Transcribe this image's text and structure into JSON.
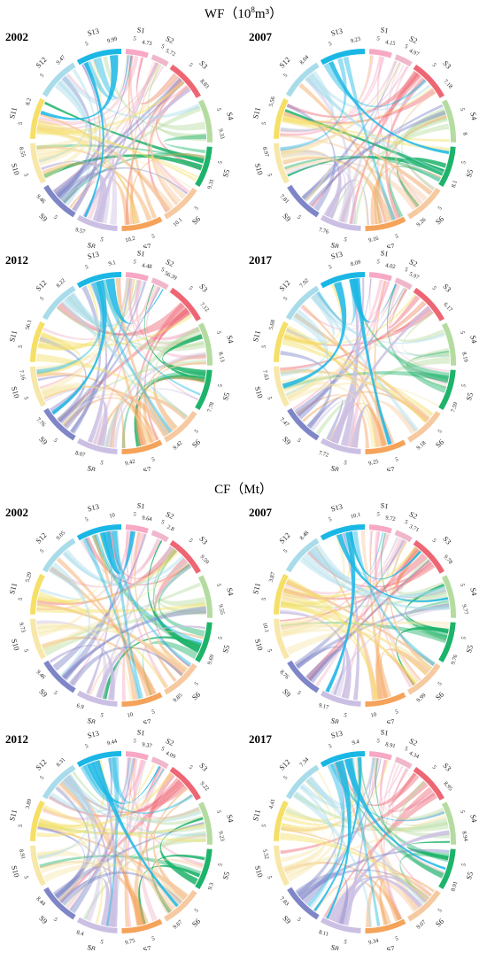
{
  "sections": [
    {
      "title": "WF（",
      "title_sup_base": "10",
      "title_sup": "8",
      "title_unit_tail": "m³）",
      "panels": [
        {
          "year": "2002"
        },
        {
          "year": "2007"
        },
        {
          "year": "2012"
        },
        {
          "year": "2017"
        }
      ]
    },
    {
      "title": "CF（Mt）",
      "panels": [
        {
          "year": "2002"
        },
        {
          "year": "2007"
        },
        {
          "year": "2012"
        },
        {
          "year": "2017"
        }
      ]
    }
  ],
  "tick_label": "5",
  "colors": [
    "#f7a8c4",
    "#f0b7cc",
    "#ee6673",
    "#b5dca0",
    "#1db36a",
    "#f6c9a0",
    "#f5a35a",
    "#cbbfe3",
    "#7f86c7",
    "#f7e7a8",
    "#f5df66",
    "#a9dcea",
    "#1ab7e5"
  ],
  "chart_data": [
    {
      "type": "chord",
      "group": "WF",
      "year": "2002",
      "sectors": [
        "S1",
        "S2",
        "S3",
        "S4",
        "S5",
        "S6",
        "S7",
        "S8",
        "S9",
        "S10",
        "S11",
        "S12",
        "S13"
      ],
      "values": [
        4.73,
        5.72,
        8.83,
        9.33,
        9.31,
        10.1,
        10.2,
        9.57,
        9.46,
        8.55,
        8.2,
        9.47,
        9.99
      ]
    },
    {
      "type": "chord",
      "group": "WF",
      "year": "2007",
      "sectors": [
        "S1",
        "S2",
        "S3",
        "S4",
        "S5",
        "S6",
        "S7",
        "S8",
        "S9",
        "S10",
        "S11",
        "S12",
        "S13"
      ],
      "values": [
        4.15,
        4.97,
        7.18,
        8,
        8.1,
        9.26,
        9.16,
        7.76,
        7.81,
        8.97,
        5.56,
        8.04,
        9.23
      ]
    },
    {
      "type": "chord",
      "group": "WF",
      "year": "2012",
      "sectors": [
        "S1",
        "S2",
        "S3",
        "S4",
        "S5",
        "S6",
        "S7",
        "S8",
        "S9",
        "S10",
        "S11",
        "S12",
        "S13"
      ],
      "values": [
        4.48,
        56.39,
        7.12,
        8.13,
        7.78,
        9.42,
        9.42,
        8.07,
        7.76,
        7.16,
        56.1,
        8.22,
        9.1
      ]
    },
    {
      "type": "chord",
      "group": "WF",
      "year": "2017",
      "sectors": [
        "S1",
        "S2",
        "S3",
        "S4",
        "S5",
        "S6",
        "S7",
        "S8",
        "S9",
        "S10",
        "S11",
        "S12",
        "S13"
      ],
      "values": [
        4.02,
        5.97,
        6.17,
        8.19,
        7.59,
        9.18,
        9.25,
        7.72,
        7.47,
        7.63,
        5.68,
        7.92,
        8.09
      ]
    },
    {
      "type": "chord",
      "group": "CF",
      "year": "2002",
      "sectors": [
        "S1",
        "S2",
        "S3",
        "S4",
        "S5",
        "S6",
        "S7",
        "S8",
        "S9",
        "S10",
        "S11",
        "S12",
        "S13"
      ],
      "values": [
        9.64,
        2.8,
        9.59,
        9.55,
        9.69,
        9.85,
        10,
        6.9,
        9.46,
        9.73,
        5.29,
        9.05,
        10
      ]
    },
    {
      "type": "chord",
      "group": "CF",
      "year": "2007",
      "sectors": [
        "S1",
        "S2",
        "S3",
        "S4",
        "S5",
        "S6",
        "S7",
        "S8",
        "S9",
        "S10",
        "S11",
        "S12",
        "S13"
      ],
      "values": [
        9.72,
        3.71,
        9.78,
        9.77,
        9.76,
        9.99,
        10,
        9.17,
        8.76,
        10.1,
        3.87,
        8.48,
        10.1
      ]
    },
    {
      "type": "chord",
      "group": "CF",
      "year": "2012",
      "sectors": [
        "S1",
        "S2",
        "S3",
        "S4",
        "S5",
        "S6",
        "S7",
        "S8",
        "S9",
        "S10",
        "S11",
        "S12",
        "S13"
      ],
      "values": [
        9.37,
        4.09,
        9.22,
        9.23,
        9.3,
        9.67,
        9.75,
        8.4,
        8.44,
        8.91,
        3.89,
        8.31,
        9.44
      ]
    },
    {
      "type": "chord",
      "group": "CF",
      "year": "2017",
      "sectors": [
        "S1",
        "S2",
        "S3",
        "S4",
        "S5",
        "S6",
        "S7",
        "S8",
        "S9",
        "S10",
        "S11",
        "S12",
        "S13"
      ],
      "values": [
        8.91,
        4.34,
        8.95,
        8.94,
        8.91,
        9.07,
        9.34,
        8.11,
        7.83,
        5.52,
        4.41,
        7.34,
        9.4
      ]
    }
  ]
}
